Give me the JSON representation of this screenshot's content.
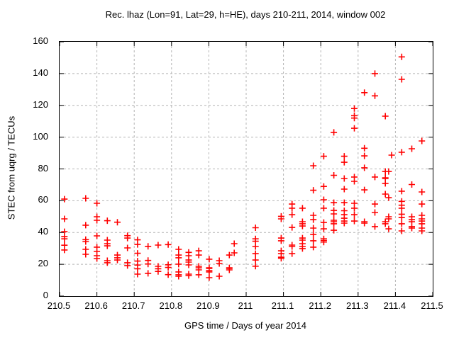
{
  "colors": {
    "background": "#ffffff",
    "frame": "#000000",
    "grid": "#b4b4b4",
    "text": "#000000",
    "marker": "#ff0000"
  },
  "chart_data": {
    "type": "scatter",
    "title": "Rec. lhaz (Lon=91, Lat=29, h=HE), days 210-211, 2014, window 002",
    "xlabel": "GPS time / Days of year 2014",
    "ylabel": "STEC from uqrg / TECUs",
    "xlim": [
      210.5,
      211.5
    ],
    "ylim": [
      0,
      160
    ],
    "xtick_values": [
      210.5,
      210.6,
      210.7,
      210.8,
      210.9,
      211.0,
      211.1,
      211.2,
      211.3,
      211.4,
      211.5
    ],
    "xtick_labels": [
      "210.5",
      "210.6",
      "210.7",
      "210.8",
      "210.9",
      "211",
      "211.1",
      "211.2",
      "211.3",
      "211.4",
      "211.5"
    ],
    "ytick_values": [
      0,
      20,
      40,
      60,
      80,
      100,
      120,
      140,
      160
    ],
    "ytick_labels": [
      "0",
      "20",
      "40",
      "60",
      "80",
      "100",
      "120",
      "140",
      "160"
    ],
    "grid": true,
    "legend_position": "none",
    "marker": {
      "shape": "plus",
      "color": "#ff0000",
      "size": 9,
      "stroke_width": 1.6
    },
    "series": [
      {
        "name": "STEC",
        "points": [
          [
            210.513,
            61.0
          ],
          [
            210.513,
            48.6
          ],
          [
            210.513,
            40.5
          ],
          [
            210.513,
            37.5
          ],
          [
            210.513,
            36.0
          ],
          [
            210.513,
            32.0
          ],
          [
            210.513,
            29.0
          ],
          [
            210.57,
            61.5
          ],
          [
            210.57,
            44.6
          ],
          [
            210.57,
            35.5
          ],
          [
            210.57,
            34.3
          ],
          [
            210.57,
            29.4
          ],
          [
            210.57,
            26.3
          ],
          [
            210.6,
            58.4
          ],
          [
            210.6,
            49.9
          ],
          [
            210.6,
            47.7
          ],
          [
            210.6,
            37.9
          ],
          [
            210.6,
            30.8
          ],
          [
            210.6,
            28.1
          ],
          [
            210.6,
            25.4
          ],
          [
            210.6,
            23.6
          ],
          [
            210.628,
            47.4
          ],
          [
            210.628,
            35.2
          ],
          [
            210.628,
            33.0
          ],
          [
            210.628,
            31.6
          ],
          [
            210.628,
            22.3
          ],
          [
            210.628,
            21.0
          ],
          [
            210.655,
            46.5
          ],
          [
            210.655,
            25.8
          ],
          [
            210.655,
            24.1
          ],
          [
            210.655,
            22.7
          ],
          [
            210.682,
            38.0
          ],
          [
            210.682,
            36.5
          ],
          [
            210.682,
            30.3
          ],
          [
            210.682,
            21.0
          ],
          [
            210.682,
            19.2
          ],
          [
            210.709,
            35.4
          ],
          [
            210.709,
            32.5
          ],
          [
            210.709,
            26.9
          ],
          [
            210.709,
            22.0
          ],
          [
            210.709,
            19.5
          ],
          [
            210.709,
            17.2
          ],
          [
            210.709,
            13.8
          ],
          [
            210.737,
            31.3
          ],
          [
            210.737,
            22.4
          ],
          [
            210.737,
            20.2
          ],
          [
            210.737,
            14.3
          ],
          [
            210.764,
            32.1
          ],
          [
            210.764,
            18.7
          ],
          [
            210.764,
            17.2
          ],
          [
            210.764,
            15.5
          ],
          [
            210.791,
            32.4
          ],
          [
            210.791,
            19.7
          ],
          [
            210.791,
            18.0
          ],
          [
            210.791,
            13.5
          ],
          [
            210.819,
            29.4
          ],
          [
            210.819,
            25.8
          ],
          [
            210.819,
            24.1
          ],
          [
            210.819,
            20.1
          ],
          [
            210.819,
            15.2
          ],
          [
            210.819,
            13.4
          ],
          [
            210.819,
            12.5
          ],
          [
            210.846,
            27.5
          ],
          [
            210.846,
            25.4
          ],
          [
            210.846,
            22.7
          ],
          [
            210.846,
            21.4
          ],
          [
            210.846,
            19.6
          ],
          [
            210.846,
            13.8
          ],
          [
            210.846,
            12.9
          ],
          [
            210.873,
            28.5
          ],
          [
            210.873,
            25.8
          ],
          [
            210.873,
            18.7
          ],
          [
            210.873,
            17.8
          ],
          [
            210.873,
            16.5
          ],
          [
            210.873,
            13.4
          ],
          [
            210.901,
            23.2
          ],
          [
            210.901,
            17.8
          ],
          [
            210.901,
            17.4
          ],
          [
            210.901,
            16.0
          ],
          [
            210.901,
            15.2
          ],
          [
            210.901,
            11.6
          ],
          [
            210.928,
            22.3
          ],
          [
            210.928,
            20.5
          ],
          [
            210.928,
            12.5
          ],
          [
            210.955,
            25.8
          ],
          [
            210.955,
            17.8
          ],
          [
            210.955,
            17.4
          ],
          [
            210.955,
            16.5
          ],
          [
            210.968,
            33.0
          ],
          [
            210.968,
            27.2
          ],
          [
            211.025,
            43.0
          ],
          [
            211.025,
            36.0
          ],
          [
            211.025,
            34.5
          ],
          [
            211.025,
            31.2
          ],
          [
            211.025,
            26.7
          ],
          [
            211.025,
            22.7
          ],
          [
            211.025,
            18.8
          ],
          [
            211.094,
            50.2
          ],
          [
            211.094,
            48.6
          ],
          [
            211.094,
            36.5
          ],
          [
            211.094,
            34.8
          ],
          [
            211.094,
            28.5
          ],
          [
            211.094,
            26.7
          ],
          [
            211.094,
            24.5
          ],
          [
            211.094,
            23.8
          ],
          [
            211.123,
            57.9
          ],
          [
            211.123,
            55.3
          ],
          [
            211.123,
            51.2
          ],
          [
            211.123,
            43.2
          ],
          [
            211.123,
            32.1
          ],
          [
            211.123,
            31.2
          ],
          [
            211.123,
            26.7
          ],
          [
            211.151,
            55.3
          ],
          [
            211.151,
            46.8
          ],
          [
            211.151,
            45.5
          ],
          [
            211.151,
            44.1
          ],
          [
            211.151,
            36.5
          ],
          [
            211.151,
            35.2
          ],
          [
            211.151,
            33.0
          ],
          [
            211.151,
            31.2
          ],
          [
            211.151,
            29.9
          ],
          [
            211.18,
            82.0
          ],
          [
            211.18,
            66.6
          ],
          [
            211.18,
            50.8
          ],
          [
            211.18,
            48.1
          ],
          [
            211.18,
            42.8
          ],
          [
            211.18,
            38.8
          ],
          [
            211.18,
            34.8
          ],
          [
            211.18,
            30.8
          ],
          [
            211.208,
            88.0
          ],
          [
            211.208,
            69.0
          ],
          [
            211.208,
            60.6
          ],
          [
            211.208,
            55.3
          ],
          [
            211.208,
            46.3
          ],
          [
            211.208,
            42.3
          ],
          [
            211.208,
            36.0
          ],
          [
            211.208,
            35.0
          ],
          [
            211.208,
            34.0
          ],
          [
            211.235,
            103.0
          ],
          [
            211.235,
            76.0
          ],
          [
            211.235,
            58.8
          ],
          [
            211.235,
            53.9
          ],
          [
            211.235,
            51.7
          ],
          [
            211.235,
            47.7
          ],
          [
            211.235,
            46.8
          ],
          [
            211.235,
            45.5
          ],
          [
            211.235,
            41.4
          ],
          [
            211.263,
            88.0
          ],
          [
            211.263,
            84.2
          ],
          [
            211.263,
            74.0
          ],
          [
            211.263,
            67.3
          ],
          [
            211.263,
            58.8
          ],
          [
            211.263,
            53.7
          ],
          [
            211.263,
            51.2
          ],
          [
            211.263,
            49.0
          ],
          [
            211.263,
            47.2
          ],
          [
            211.263,
            45.9
          ],
          [
            211.29,
            118.0
          ],
          [
            211.29,
            113.5
          ],
          [
            211.29,
            112.0
          ],
          [
            211.29,
            105.6
          ],
          [
            211.29,
            74.9
          ],
          [
            211.29,
            72.2
          ],
          [
            211.29,
            58.4
          ],
          [
            211.29,
            55.3
          ],
          [
            211.29,
            51.2
          ],
          [
            211.29,
            47.2
          ],
          [
            211.317,
            128.0
          ],
          [
            211.317,
            93.0
          ],
          [
            211.317,
            88.2
          ],
          [
            211.317,
            80.7
          ],
          [
            211.317,
            66.8
          ],
          [
            211.317,
            46.8
          ],
          [
            211.317,
            45.9
          ],
          [
            211.345,
            140.0
          ],
          [
            211.345,
            126.0
          ],
          [
            211.345,
            74.9
          ],
          [
            211.345,
            57.9
          ],
          [
            211.345,
            52.6
          ],
          [
            211.345,
            43.7
          ],
          [
            211.373,
            113.2
          ],
          [
            211.373,
            78.4
          ],
          [
            211.373,
            74.4
          ],
          [
            211.373,
            74.0
          ],
          [
            211.373,
            70.9
          ],
          [
            211.373,
            64.2
          ],
          [
            211.373,
            46.8
          ],
          [
            211.373,
            45.5
          ],
          [
            211.382,
            78.4
          ],
          [
            211.382,
            61.9
          ],
          [
            211.382,
            49.9
          ],
          [
            211.382,
            48.6
          ],
          [
            211.382,
            42.3
          ],
          [
            211.39,
            88.7
          ],
          [
            211.417,
            150.5
          ],
          [
            211.417,
            136.4
          ],
          [
            211.417,
            90.5
          ],
          [
            211.417,
            66.0
          ],
          [
            211.417,
            59.6
          ],
          [
            211.417,
            57.2
          ],
          [
            211.417,
            55.3
          ],
          [
            211.417,
            51.5
          ],
          [
            211.417,
            49.4
          ],
          [
            211.417,
            45.5
          ],
          [
            211.417,
            41.0
          ],
          [
            211.444,
            92.7
          ],
          [
            211.444,
            70.2
          ],
          [
            211.444,
            49.9
          ],
          [
            211.444,
            48.1
          ],
          [
            211.444,
            46.8
          ],
          [
            211.444,
            43.7
          ],
          [
            211.444,
            42.8
          ],
          [
            211.471,
            97.6
          ],
          [
            211.471,
            65.5
          ],
          [
            211.471,
            57.9
          ],
          [
            211.471,
            50.8
          ],
          [
            211.471,
            48.6
          ],
          [
            211.471,
            47.2
          ],
          [
            211.471,
            45.5
          ],
          [
            211.471,
            42.8
          ],
          [
            211.471,
            41.0
          ]
        ]
      }
    ]
  }
}
